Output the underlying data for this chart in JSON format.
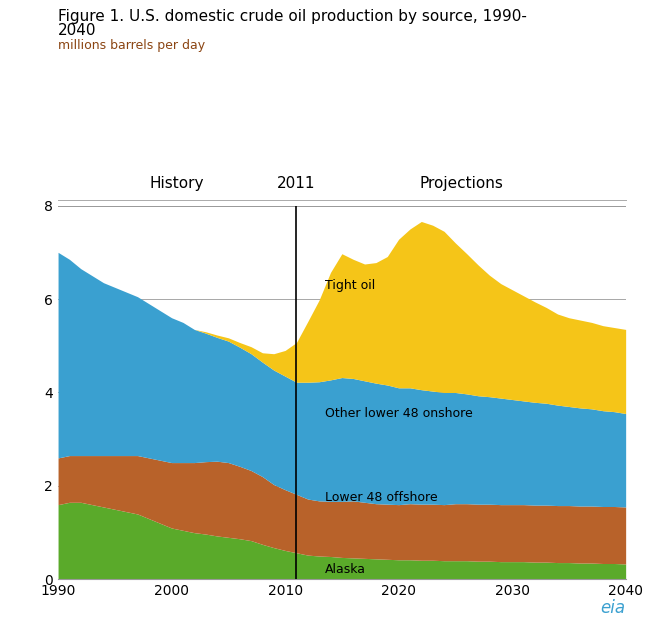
{
  "title_line1": "Figure 1. U.S. domestic crude oil production by source, 1990-",
  "title_line2": "2040",
  "subtitle": "millions barrels per day",
  "title_color": "#000000",
  "subtitle_color": "#8B4513",
  "years": [
    1990,
    1991,
    1992,
    1993,
    1994,
    1995,
    1996,
    1997,
    1998,
    1999,
    2000,
    2001,
    2002,
    2003,
    2004,
    2005,
    2006,
    2007,
    2008,
    2009,
    2010,
    2011,
    2012,
    2013,
    2014,
    2015,
    2016,
    2017,
    2018,
    2019,
    2020,
    2021,
    2022,
    2023,
    2024,
    2025,
    2026,
    2027,
    2028,
    2029,
    2030,
    2031,
    2032,
    2033,
    2034,
    2035,
    2036,
    2037,
    2038,
    2039,
    2040
  ],
  "alaska": [
    1.6,
    1.65,
    1.65,
    1.6,
    1.55,
    1.5,
    1.45,
    1.4,
    1.3,
    1.2,
    1.1,
    1.05,
    1.0,
    0.97,
    0.93,
    0.9,
    0.87,
    0.83,
    0.75,
    0.68,
    0.62,
    0.57,
    0.52,
    0.5,
    0.49,
    0.47,
    0.46,
    0.45,
    0.44,
    0.43,
    0.42,
    0.42,
    0.41,
    0.41,
    0.4,
    0.4,
    0.4,
    0.39,
    0.39,
    0.38,
    0.38,
    0.38,
    0.37,
    0.37,
    0.36,
    0.36,
    0.35,
    0.35,
    0.34,
    0.34,
    0.33
  ],
  "lower48_offshore": [
    1.0,
    1.0,
    1.0,
    1.05,
    1.1,
    1.15,
    1.2,
    1.25,
    1.3,
    1.35,
    1.4,
    1.45,
    1.5,
    1.55,
    1.6,
    1.6,
    1.55,
    1.5,
    1.45,
    1.35,
    1.3,
    1.25,
    1.2,
    1.18,
    1.18,
    1.2,
    1.22,
    1.2,
    1.18,
    1.18,
    1.18,
    1.2,
    1.2,
    1.2,
    1.2,
    1.22,
    1.22,
    1.22,
    1.22,
    1.22,
    1.22,
    1.22,
    1.22,
    1.22,
    1.22,
    1.22,
    1.22,
    1.22,
    1.22,
    1.22,
    1.22
  ],
  "other_lower48_onshore": [
    4.4,
    4.2,
    4.0,
    3.85,
    3.7,
    3.6,
    3.5,
    3.4,
    3.3,
    3.2,
    3.1,
    3.0,
    2.85,
    2.75,
    2.65,
    2.6,
    2.55,
    2.5,
    2.45,
    2.45,
    2.43,
    2.4,
    2.5,
    2.55,
    2.6,
    2.65,
    2.62,
    2.6,
    2.58,
    2.55,
    2.5,
    2.48,
    2.45,
    2.42,
    2.4,
    2.38,
    2.35,
    2.32,
    2.3,
    2.28,
    2.25,
    2.22,
    2.2,
    2.18,
    2.15,
    2.12,
    2.1,
    2.08,
    2.05,
    2.03,
    2.0
  ],
  "tight_oil": [
    0.0,
    0.0,
    0.0,
    0.0,
    0.0,
    0.0,
    0.0,
    0.0,
    0.0,
    0.0,
    0.0,
    0.0,
    0.0,
    0.03,
    0.05,
    0.07,
    0.1,
    0.15,
    0.2,
    0.35,
    0.55,
    0.85,
    1.3,
    1.75,
    2.3,
    2.65,
    2.55,
    2.5,
    2.58,
    2.75,
    3.18,
    3.4,
    3.6,
    3.55,
    3.45,
    3.2,
    3.0,
    2.8,
    2.6,
    2.45,
    2.35,
    2.25,
    2.15,
    2.05,
    1.95,
    1.9,
    1.88,
    1.85,
    1.82,
    1.8,
    1.8
  ],
  "colors": {
    "alaska": "#5aaa2a",
    "lower48_offshore": "#b8622a",
    "other_lower48_onshore": "#3aa0d0",
    "tight_oil": "#f5c518"
  },
  "xlim": [
    1990,
    2040
  ],
  "ylim": [
    0,
    8
  ],
  "yticks": [
    0,
    2,
    4,
    6,
    8
  ],
  "xticks": [
    1990,
    2000,
    2010,
    2020,
    2030,
    2040
  ],
  "divider_year": 2011,
  "history_label": "History",
  "projections_label": "Projections",
  "divider_label": "2011",
  "label_tight_oil": "Tight oil",
  "label_other_lower48": "Other lower 48 onshore",
  "label_lower48_offshore": "Lower 48 offshore",
  "label_alaska": "Alaska",
  "eia_label": "eia",
  "background_color": "#ffffff",
  "grid_color": "#999999",
  "text_color": "#000000"
}
